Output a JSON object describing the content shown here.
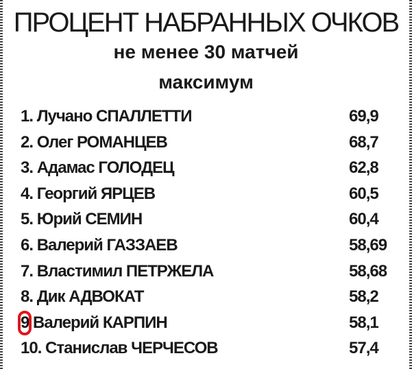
{
  "title": "ПРОЦЕНТ НАБРАННЫХ ОЧКОВ",
  "subtitle": "не менее 30 матчей",
  "subtitle2": "максимум",
  "highlight_color": "#e0161c",
  "rows": [
    {
      "rank": "1.",
      "name": "Лучано СПАЛЛЕТТИ",
      "value": "69,9"
    },
    {
      "rank": "2.",
      "name": "Олег РОМАНЦЕВ",
      "value": "68,7"
    },
    {
      "rank": "3.",
      "name": "Адамас ГОЛОДЕЦ",
      "value": "62,8"
    },
    {
      "rank": "4.",
      "name": "Георгий ЯРЦЕВ",
      "value": "60,5"
    },
    {
      "rank": "5.",
      "name": "Юрий СЕМИН",
      "value": "60,4"
    },
    {
      "rank": "6.",
      "name": "Валерий ГАЗЗАЕВ",
      "value": "58,69"
    },
    {
      "rank": "7.",
      "name": "Властимил ПЕТРЖЕЛА",
      "value": "58,68"
    },
    {
      "rank": "8.",
      "name": "Дик АДВОКАТ",
      "value": "58,2"
    },
    {
      "rank": "9",
      "name": "Валерий КАРПИН",
      "value": "58,1",
      "highlighted": true
    },
    {
      "rank": "10.",
      "name": "Станислав ЧЕРЧЕСОВ",
      "value": "57,4"
    }
  ]
}
